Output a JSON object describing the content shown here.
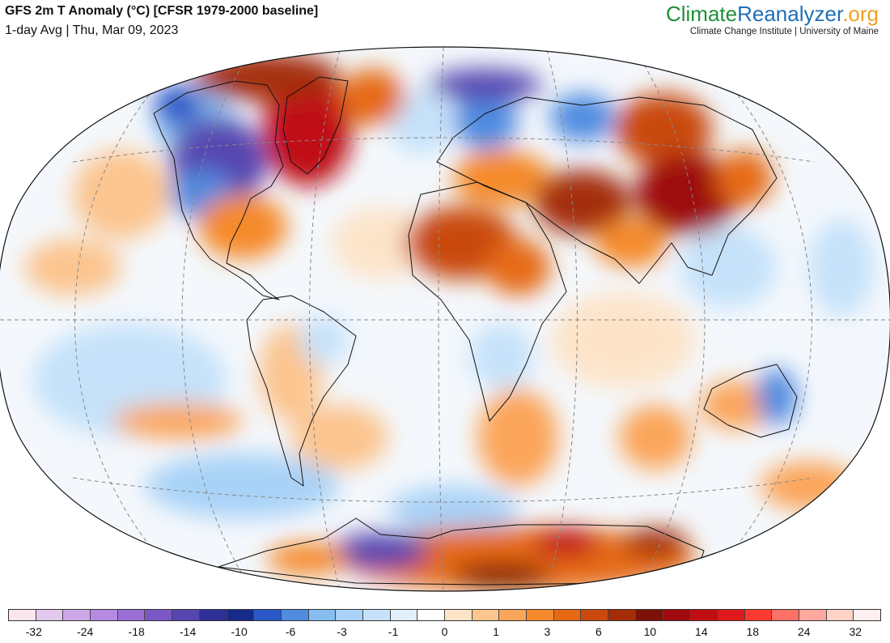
{
  "header": {
    "title": "GFS 2m T Anomaly (°C) [CFSR 1979-2000 baseline]",
    "subtitle": "1-day Avg | Thu, Mar 09, 2023"
  },
  "brand": {
    "name_part1": "Climate",
    "name_part2": "Reanalyzer",
    "name_part3": ".org",
    "tagline": "Climate Change Institute | University of Maine"
  },
  "colors": {
    "ocean_neutral": "#f4f8fc",
    "land_outline": "#111111",
    "graticule": "#888888"
  },
  "legend": {
    "colors": [
      "#fbe6ee",
      "#e3c9ec",
      "#cda8e6",
      "#b58ae0",
      "#9a6fd6",
      "#7a57c4",
      "#5646b0",
      "#2f2f9a",
      "#162a8a",
      "#2b58c8",
      "#4f8be0",
      "#86bdf1",
      "#a8d2f7",
      "#c5e2fa",
      "#e2f0fd",
      "#ffffff",
      "#fde4c9",
      "#fcc48e",
      "#fba55a",
      "#f58a2c",
      "#e66a14",
      "#c94a0c",
      "#a42d08",
      "#7c1206",
      "#9e0a10",
      "#c00e12",
      "#e0191c",
      "#ff3b2f",
      "#ff7066",
      "#ffa89d",
      "#ffd2c6",
      "#fdeff0"
    ],
    "labels": [
      "-32",
      "-24",
      "-18",
      "-14",
      "-10",
      "-6",
      "-3",
      "-1",
      "0",
      "1",
      "3",
      "6",
      "10",
      "14",
      "18",
      "24",
      "32"
    ]
  },
  "anomaly_regions": [
    {
      "name": "greenland",
      "anomaly": 14
    },
    {
      "name": "canada-west",
      "anomaly": -10
    },
    {
      "name": "southeast-us",
      "anomaly": 6
    },
    {
      "name": "north-africa",
      "anomaly": 6
    },
    {
      "name": "europe",
      "anomaly": 3
    },
    {
      "name": "scandinavia",
      "anomaly": -6
    },
    {
      "name": "west-siberia",
      "anomaly": -6
    },
    {
      "name": "east-siberia",
      "anomaly": 10
    },
    {
      "name": "china",
      "anomaly": 14
    },
    {
      "name": "middle-east",
      "anomaly": 10
    },
    {
      "name": "australia-east",
      "anomaly": -6
    },
    {
      "name": "south-america",
      "anomaly": 1
    },
    {
      "name": "antarctica-east",
      "anomaly": 10
    },
    {
      "name": "antarctica-west",
      "anomaly": -10
    },
    {
      "name": "south-pacific",
      "anomaly": -3
    },
    {
      "name": "southern-ocean",
      "anomaly": 1
    }
  ]
}
